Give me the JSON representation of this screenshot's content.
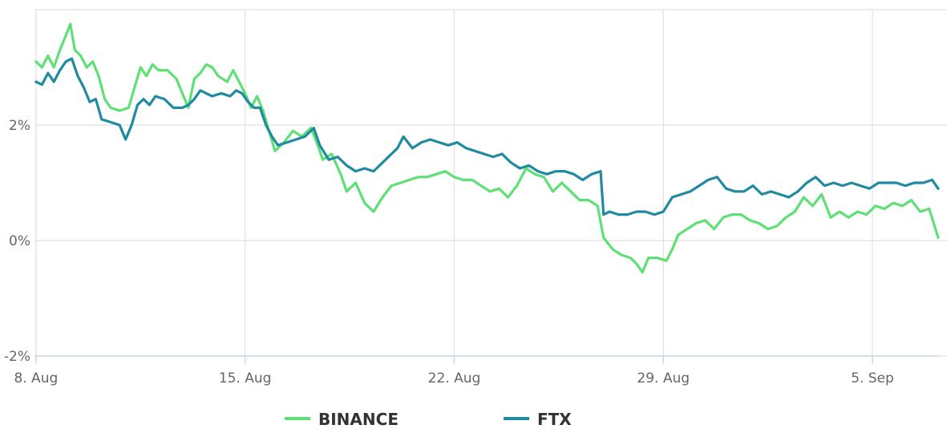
{
  "chart_data": {
    "type": "line",
    "title": "",
    "xlabel": "",
    "ylabel": "",
    "x_ticks": [
      {
        "label": "8. Aug",
        "day": 8
      },
      {
        "label": "15. Aug",
        "day": 15
      },
      {
        "label": "22. Aug",
        "day": 22
      },
      {
        "label": "29. Aug",
        "day": 29
      },
      {
        "label": "5. Sep",
        "day": 36
      }
    ],
    "y_ticks": [
      {
        "label": "-2%",
        "value": -2
      },
      {
        "label": "0%",
        "value": 0
      },
      {
        "label": "2%",
        "value": 2
      }
    ],
    "xlim": [
      7.95,
      38.2
    ],
    "ylim": [
      -2.0,
      4.0
    ],
    "x_unit_note": "days in August (32 = 1 Sep)",
    "grid": "vertical lines at x ticks, horizontal lines at y ticks",
    "legend_position": "bottom-center",
    "series": [
      {
        "name": "BINANCE",
        "color": "#5ee077",
        "points": [
          [
            8.0,
            3.1
          ],
          [
            8.2,
            3.0
          ],
          [
            8.4,
            3.2
          ],
          [
            8.6,
            3.0
          ],
          [
            8.8,
            3.3
          ],
          [
            9.0,
            3.55
          ],
          [
            9.15,
            3.75
          ],
          [
            9.3,
            3.3
          ],
          [
            9.5,
            3.2
          ],
          [
            9.7,
            3.0
          ],
          [
            9.9,
            3.1
          ],
          [
            10.1,
            2.85
          ],
          [
            10.3,
            2.45
          ],
          [
            10.5,
            2.3
          ],
          [
            10.8,
            2.25
          ],
          [
            11.1,
            2.3
          ],
          [
            11.3,
            2.65
          ],
          [
            11.5,
            3.0
          ],
          [
            11.7,
            2.85
          ],
          [
            11.9,
            3.05
          ],
          [
            12.1,
            2.95
          ],
          [
            12.4,
            2.95
          ],
          [
            12.7,
            2.8
          ],
          [
            12.9,
            2.55
          ],
          [
            13.1,
            2.3
          ],
          [
            13.3,
            2.8
          ],
          [
            13.5,
            2.9
          ],
          [
            13.7,
            3.05
          ],
          [
            13.9,
            3.0
          ],
          [
            14.1,
            2.85
          ],
          [
            14.4,
            2.75
          ],
          [
            14.6,
            2.95
          ],
          [
            14.8,
            2.75
          ],
          [
            15.0,
            2.55
          ],
          [
            15.2,
            2.3
          ],
          [
            15.4,
            2.5
          ],
          [
            15.6,
            2.25
          ],
          [
            15.8,
            1.9
          ],
          [
            16.0,
            1.55
          ],
          [
            16.3,
            1.7
          ],
          [
            16.6,
            1.9
          ],
          [
            16.9,
            1.8
          ],
          [
            17.2,
            1.95
          ],
          [
            17.4,
            1.7
          ],
          [
            17.6,
            1.4
          ],
          [
            17.9,
            1.5
          ],
          [
            18.2,
            1.15
          ],
          [
            18.4,
            0.85
          ],
          [
            18.7,
            1.0
          ],
          [
            19.0,
            0.65
          ],
          [
            19.3,
            0.5
          ],
          [
            19.6,
            0.75
          ],
          [
            19.9,
            0.95
          ],
          [
            20.2,
            1.0
          ],
          [
            20.5,
            1.05
          ],
          [
            20.8,
            1.1
          ],
          [
            21.1,
            1.1
          ],
          [
            21.4,
            1.15
          ],
          [
            21.7,
            1.2
          ],
          [
            22.0,
            1.1
          ],
          [
            22.3,
            1.05
          ],
          [
            22.6,
            1.05
          ],
          [
            22.9,
            0.95
          ],
          [
            23.2,
            0.85
          ],
          [
            23.5,
            0.9
          ],
          [
            23.8,
            0.75
          ],
          [
            24.1,
            0.95
          ],
          [
            24.4,
            1.25
          ],
          [
            24.7,
            1.15
          ],
          [
            25.0,
            1.1
          ],
          [
            25.3,
            0.85
          ],
          [
            25.6,
            1.0
          ],
          [
            25.9,
            0.85
          ],
          [
            26.2,
            0.7
          ],
          [
            26.5,
            0.7
          ],
          [
            26.8,
            0.6
          ],
          [
            27.0,
            0.05
          ],
          [
            27.3,
            -0.15
          ],
          [
            27.6,
            -0.25
          ],
          [
            27.9,
            -0.3
          ],
          [
            28.1,
            -0.4
          ],
          [
            28.3,
            -0.55
          ],
          [
            28.5,
            -0.3
          ],
          [
            28.8,
            -0.3
          ],
          [
            29.1,
            -0.35
          ],
          [
            29.3,
            -0.15
          ],
          [
            29.5,
            0.1
          ],
          [
            29.8,
            0.2
          ],
          [
            30.1,
            0.3
          ],
          [
            30.4,
            0.35
          ],
          [
            30.7,
            0.2
          ],
          [
            31.0,
            0.4
          ],
          [
            31.3,
            0.45
          ],
          [
            31.6,
            0.45
          ],
          [
            31.9,
            0.35
          ],
          [
            32.2,
            0.3
          ],
          [
            32.5,
            0.2
          ],
          [
            32.8,
            0.25
          ],
          [
            33.1,
            0.4
          ],
          [
            33.4,
            0.5
          ],
          [
            33.7,
            0.75
          ],
          [
            34.0,
            0.6
          ],
          [
            34.3,
            0.8
          ],
          [
            34.6,
            0.4
          ],
          [
            34.9,
            0.5
          ],
          [
            35.2,
            0.4
          ],
          [
            35.5,
            0.5
          ],
          [
            35.8,
            0.45
          ],
          [
            36.1,
            0.6
          ],
          [
            36.4,
            0.55
          ],
          [
            36.7,
            0.65
          ],
          [
            37.0,
            0.6
          ],
          [
            37.3,
            0.7
          ],
          [
            37.6,
            0.5
          ],
          [
            37.9,
            0.55
          ],
          [
            38.2,
            0.05
          ]
        ]
      },
      {
        "name": "FTX",
        "color": "#1f8aa0",
        "points": [
          [
            8.0,
            2.75
          ],
          [
            8.2,
            2.7
          ],
          [
            8.4,
            2.9
          ],
          [
            8.6,
            2.75
          ],
          [
            8.8,
            2.95
          ],
          [
            9.0,
            3.1
          ],
          [
            9.2,
            3.15
          ],
          [
            9.4,
            2.85
          ],
          [
            9.6,
            2.65
          ],
          [
            9.8,
            2.4
          ],
          [
            10.0,
            2.45
          ],
          [
            10.2,
            2.1
          ],
          [
            10.5,
            2.05
          ],
          [
            10.8,
            2.0
          ],
          [
            11.0,
            1.75
          ],
          [
            11.2,
            2.0
          ],
          [
            11.4,
            2.35
          ],
          [
            11.6,
            2.45
          ],
          [
            11.8,
            2.35
          ],
          [
            12.0,
            2.5
          ],
          [
            12.3,
            2.45
          ],
          [
            12.6,
            2.3
          ],
          [
            12.9,
            2.3
          ],
          [
            13.1,
            2.35
          ],
          [
            13.3,
            2.45
          ],
          [
            13.5,
            2.6
          ],
          [
            13.7,
            2.55
          ],
          [
            13.9,
            2.5
          ],
          [
            14.2,
            2.55
          ],
          [
            14.5,
            2.5
          ],
          [
            14.7,
            2.6
          ],
          [
            14.9,
            2.55
          ],
          [
            15.1,
            2.4
          ],
          [
            15.3,
            2.3
          ],
          [
            15.5,
            2.3
          ],
          [
            15.7,
            2.0
          ],
          [
            15.9,
            1.8
          ],
          [
            16.1,
            1.65
          ],
          [
            16.4,
            1.7
          ],
          [
            16.7,
            1.75
          ],
          [
            17.0,
            1.8
          ],
          [
            17.3,
            1.95
          ],
          [
            17.5,
            1.65
          ],
          [
            17.8,
            1.4
          ],
          [
            18.1,
            1.45
          ],
          [
            18.4,
            1.3
          ],
          [
            18.7,
            1.2
          ],
          [
            19.0,
            1.25
          ],
          [
            19.3,
            1.2
          ],
          [
            19.6,
            1.35
          ],
          [
            19.9,
            1.5
          ],
          [
            20.1,
            1.6
          ],
          [
            20.3,
            1.8
          ],
          [
            20.6,
            1.6
          ],
          [
            20.9,
            1.7
          ],
          [
            21.2,
            1.75
          ],
          [
            21.5,
            1.7
          ],
          [
            21.8,
            1.65
          ],
          [
            22.1,
            1.7
          ],
          [
            22.4,
            1.6
          ],
          [
            22.7,
            1.55
          ],
          [
            23.0,
            1.5
          ],
          [
            23.3,
            1.45
          ],
          [
            23.6,
            1.5
          ],
          [
            23.9,
            1.35
          ],
          [
            24.2,
            1.25
          ],
          [
            24.5,
            1.3
          ],
          [
            24.8,
            1.2
          ],
          [
            25.1,
            1.15
          ],
          [
            25.4,
            1.2
          ],
          [
            25.7,
            1.2
          ],
          [
            26.0,
            1.15
          ],
          [
            26.3,
            1.05
          ],
          [
            26.6,
            1.15
          ],
          [
            26.9,
            1.2
          ],
          [
            27.0,
            0.45
          ],
          [
            27.2,
            0.5
          ],
          [
            27.5,
            0.45
          ],
          [
            27.8,
            0.45
          ],
          [
            28.1,
            0.5
          ],
          [
            28.4,
            0.5
          ],
          [
            28.7,
            0.45
          ],
          [
            29.0,
            0.5
          ],
          [
            29.3,
            0.75
          ],
          [
            29.6,
            0.8
          ],
          [
            29.9,
            0.85
          ],
          [
            30.2,
            0.95
          ],
          [
            30.5,
            1.05
          ],
          [
            30.8,
            1.1
          ],
          [
            31.1,
            0.9
          ],
          [
            31.4,
            0.85
          ],
          [
            31.7,
            0.85
          ],
          [
            32.0,
            0.95
          ],
          [
            32.3,
            0.8
          ],
          [
            32.6,
            0.85
          ],
          [
            32.9,
            0.8
          ],
          [
            33.2,
            0.75
          ],
          [
            33.5,
            0.85
          ],
          [
            33.8,
            1.0
          ],
          [
            34.1,
            1.1
          ],
          [
            34.4,
            0.95
          ],
          [
            34.7,
            1.0
          ],
          [
            35.0,
            0.95
          ],
          [
            35.3,
            1.0
          ],
          [
            35.6,
            0.95
          ],
          [
            35.9,
            0.9
          ],
          [
            36.2,
            1.0
          ],
          [
            36.5,
            1.0
          ],
          [
            36.8,
            1.0
          ],
          [
            37.1,
            0.95
          ],
          [
            37.4,
            1.0
          ],
          [
            37.7,
            1.0
          ],
          [
            38.0,
            1.05
          ],
          [
            38.2,
            0.9
          ]
        ]
      }
    ]
  }
}
